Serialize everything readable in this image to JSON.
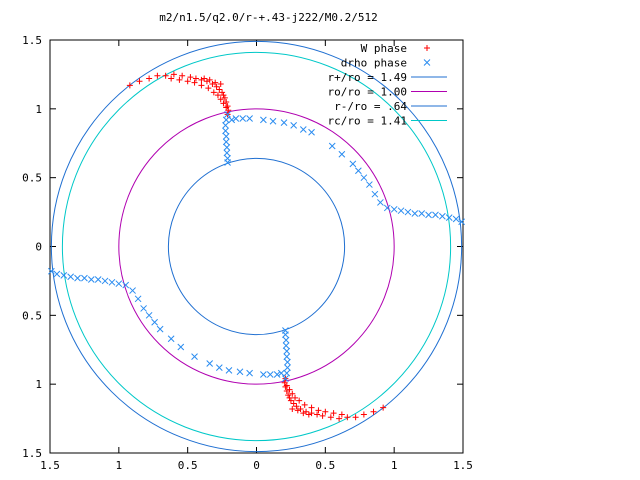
{
  "chart_data": {
    "type": "scatter",
    "title": "m2/n1.5/q2.0/r-+.43-j222/M0.2/512",
    "xlim": [
      -1.5,
      1.5
    ],
    "ylim": [
      -1.5,
      1.5
    ],
    "x_ticks": [
      -1.5,
      -1,
      -0.5,
      0,
      0.5,
      1,
      1.5
    ],
    "y_ticks": [
      -1.5,
      -1,
      -0.5,
      0,
      0.5,
      1,
      1.5
    ],
    "x_tick_labels": [
      "1.5",
      "1",
      "0.5",
      "0",
      "0.5",
      "1",
      "1.5"
    ],
    "y_tick_labels": [
      "1.5",
      "1",
      "0.5",
      "0",
      "0.5",
      "1",
      "1.5"
    ],
    "grid": false,
    "legend_position": "top-right",
    "circles": [
      {
        "name": "r+/ro = 1.49",
        "radius": 1.49,
        "color": "#1f6fd1"
      },
      {
        "name": "ro/ro = 1.00",
        "radius": 1.0,
        "color": "#b000b0"
      },
      {
        "name": "r-/ro = .64",
        "radius": 0.64,
        "color": "#1f6fd1"
      },
      {
        "name": "rc/ro = 1.41",
        "radius": 1.41,
        "color": "#00c8c8"
      }
    ],
    "series": [
      {
        "name": "W phase",
        "marker": "plus",
        "color": "#ff0000",
        "points": [
          [
            -0.92,
            1.17
          ],
          [
            -0.85,
            1.2
          ],
          [
            -0.78,
            1.22
          ],
          [
            -0.72,
            1.24
          ],
          [
            -0.66,
            1.24
          ],
          [
            -0.6,
            1.25
          ],
          [
            -0.54,
            1.24
          ],
          [
            -0.48,
            1.23
          ],
          [
            -0.44,
            1.22
          ],
          [
            -0.4,
            1.21
          ],
          [
            -0.36,
            1.2
          ],
          [
            -0.32,
            1.18
          ],
          [
            -0.29,
            1.16
          ],
          [
            -0.27,
            1.14
          ],
          [
            -0.25,
            1.12
          ],
          [
            -0.24,
            1.1
          ],
          [
            -0.23,
            1.08
          ],
          [
            -0.22,
            1.05
          ],
          [
            -0.21,
            1.02
          ],
          [
            -0.205,
            0.99
          ],
          [
            -0.21,
            0.96
          ],
          [
            -0.62,
            1.22
          ],
          [
            -0.56,
            1.21
          ],
          [
            -0.5,
            1.2
          ],
          [
            -0.45,
            1.19
          ],
          [
            -0.4,
            1.17
          ],
          [
            -0.35,
            1.15
          ],
          [
            -0.31,
            1.12
          ],
          [
            -0.28,
            1.1
          ],
          [
            -0.26,
            1.07
          ],
          [
            -0.24,
            1.04
          ],
          [
            -0.22,
            1.01
          ],
          [
            -0.3,
            1.19
          ],
          [
            -0.34,
            1.21
          ],
          [
            -0.38,
            1.22
          ],
          [
            -0.26,
            1.18
          ],
          [
            0.92,
            -1.17
          ],
          [
            0.85,
            -1.2
          ],
          [
            0.78,
            -1.22
          ],
          [
            0.72,
            -1.24
          ],
          [
            0.66,
            -1.24
          ],
          [
            0.6,
            -1.25
          ],
          [
            0.54,
            -1.24
          ],
          [
            0.48,
            -1.23
          ],
          [
            0.44,
            -1.22
          ],
          [
            0.4,
            -1.21
          ],
          [
            0.36,
            -1.2
          ],
          [
            0.32,
            -1.18
          ],
          [
            0.29,
            -1.16
          ],
          [
            0.27,
            -1.14
          ],
          [
            0.25,
            -1.12
          ],
          [
            0.24,
            -1.1
          ],
          [
            0.23,
            -1.08
          ],
          [
            0.22,
            -1.05
          ],
          [
            0.21,
            -1.02
          ],
          [
            0.205,
            -0.99
          ],
          [
            0.21,
            -0.96
          ],
          [
            0.62,
            -1.22
          ],
          [
            0.56,
            -1.21
          ],
          [
            0.5,
            -1.2
          ],
          [
            0.45,
            -1.19
          ],
          [
            0.4,
            -1.17
          ],
          [
            0.35,
            -1.15
          ],
          [
            0.31,
            -1.12
          ],
          [
            0.28,
            -1.1
          ],
          [
            0.26,
            -1.07
          ],
          [
            0.24,
            -1.04
          ],
          [
            0.22,
            -1.01
          ],
          [
            0.3,
            -1.19
          ],
          [
            0.34,
            -1.21
          ],
          [
            0.38,
            -1.22
          ],
          [
            0.26,
            -1.18
          ]
        ]
      },
      {
        "name": "drho phase",
        "marker": "cross",
        "color": "#2a8cf0",
        "points": [
          [
            -0.21,
            0.96
          ],
          [
            -0.22,
            0.92
          ],
          [
            -0.225,
            0.88
          ],
          [
            -0.225,
            0.84
          ],
          [
            -0.22,
            0.8
          ],
          [
            -0.22,
            0.76
          ],
          [
            -0.215,
            0.72
          ],
          [
            -0.215,
            0.68
          ],
          [
            -0.21,
            0.64
          ],
          [
            -0.21,
            0.61
          ],
          [
            -0.18,
            0.92
          ],
          [
            -0.15,
            0.93
          ],
          [
            -0.1,
            0.93
          ],
          [
            -0.05,
            0.93
          ],
          [
            0.05,
            0.92
          ],
          [
            0.12,
            0.91
          ],
          [
            0.2,
            0.9
          ],
          [
            0.27,
            0.88
          ],
          [
            0.34,
            0.85
          ],
          [
            0.4,
            0.83
          ],
          [
            0.55,
            0.73
          ],
          [
            0.62,
            0.67
          ],
          [
            0.7,
            0.6
          ],
          [
            0.74,
            0.55
          ],
          [
            0.78,
            0.5
          ],
          [
            0.82,
            0.45
          ],
          [
            0.86,
            0.38
          ],
          [
            0.9,
            0.32
          ],
          [
            0.95,
            0.28
          ],
          [
            1.0,
            0.27
          ],
          [
            1.05,
            0.26
          ],
          [
            1.1,
            0.25
          ],
          [
            1.15,
            0.24
          ],
          [
            1.2,
            0.24
          ],
          [
            1.25,
            0.23
          ],
          [
            1.3,
            0.23
          ],
          [
            1.35,
            0.22
          ],
          [
            1.4,
            0.21
          ],
          [
            1.45,
            0.2
          ],
          [
            1.49,
            0.18
          ],
          [
            0.21,
            -0.96
          ],
          [
            0.22,
            -0.92
          ],
          [
            0.225,
            -0.88
          ],
          [
            0.225,
            -0.84
          ],
          [
            0.22,
            -0.8
          ],
          [
            0.22,
            -0.76
          ],
          [
            0.215,
            -0.72
          ],
          [
            0.215,
            -0.68
          ],
          [
            0.21,
            -0.64
          ],
          [
            0.21,
            -0.61
          ],
          [
            0.18,
            -0.92
          ],
          [
            0.15,
            -0.93
          ],
          [
            0.1,
            -0.93
          ],
          [
            0.05,
            -0.93
          ],
          [
            -0.05,
            -0.92
          ],
          [
            -0.12,
            -0.91
          ],
          [
            -0.2,
            -0.9
          ],
          [
            -0.27,
            -0.88
          ],
          [
            -0.34,
            -0.85
          ],
          [
            -0.45,
            -0.8
          ],
          [
            -0.55,
            -0.73
          ],
          [
            -0.62,
            -0.67
          ],
          [
            -0.7,
            -0.6
          ],
          [
            -0.74,
            -0.55
          ],
          [
            -0.78,
            -0.5
          ],
          [
            -0.82,
            -0.45
          ],
          [
            -0.86,
            -0.38
          ],
          [
            -0.9,
            -0.32
          ],
          [
            -0.95,
            -0.28
          ],
          [
            -1.0,
            -0.27
          ],
          [
            -1.05,
            -0.26
          ],
          [
            -1.1,
            -0.25
          ],
          [
            -1.15,
            -0.24
          ],
          [
            -1.2,
            -0.24
          ],
          [
            -1.25,
            -0.23
          ],
          [
            -1.3,
            -0.23
          ],
          [
            -1.35,
            -0.22
          ],
          [
            -1.4,
            -0.21
          ],
          [
            -1.45,
            -0.2
          ],
          [
            -1.49,
            -0.18
          ]
        ]
      }
    ]
  }
}
